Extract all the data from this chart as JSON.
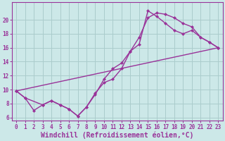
{
  "title": "",
  "xlabel": "Windchill (Refroidissement éolien,°C)",
  "ylabel": "",
  "bg_color": "#cce8e8",
  "grid_color": "#aacccc",
  "line_color": "#993399",
  "xlim": [
    -0.5,
    23.5
  ],
  "ylim": [
    5.5,
    22.5
  ],
  "xticks": [
    0,
    1,
    2,
    3,
    4,
    5,
    6,
    7,
    8,
    9,
    10,
    11,
    12,
    13,
    14,
    15,
    16,
    17,
    18,
    19,
    20,
    21,
    22,
    23
  ],
  "yticks": [
    6,
    8,
    10,
    12,
    14,
    16,
    18,
    20
  ],
  "line1_x": [
    0,
    1,
    2,
    3,
    4,
    5,
    6,
    7,
    8,
    9,
    10,
    11,
    12,
    13,
    14,
    15,
    16,
    17,
    18,
    19,
    20,
    21,
    22,
    23
  ],
  "line1_y": [
    9.8,
    8.8,
    7.0,
    7.8,
    8.4,
    7.8,
    7.2,
    6.2,
    7.5,
    9.3,
    11.5,
    13.0,
    13.8,
    15.5,
    17.5,
    20.3,
    21.0,
    20.8,
    20.3,
    19.5,
    19.0,
    17.5,
    16.8,
    16.0
  ],
  "line2_x": [
    0,
    1,
    3,
    4,
    5,
    6,
    7,
    8,
    9,
    10,
    11,
    12,
    13,
    14,
    15,
    16,
    17,
    18,
    19,
    20,
    21,
    22,
    23
  ],
  "line2_y": [
    9.8,
    8.8,
    7.8,
    8.4,
    7.8,
    7.2,
    6.2,
    7.5,
    9.5,
    11.0,
    11.5,
    13.0,
    15.5,
    16.5,
    21.3,
    20.5,
    19.5,
    18.5,
    18.0,
    18.5,
    17.5,
    16.8,
    16.0
  ],
  "line3_x": [
    0,
    23
  ],
  "line3_y": [
    9.8,
    16.0
  ],
  "marker": "D",
  "marker_size": 2.5,
  "line_width": 1.0,
  "tick_fontsize": 5.5,
  "xlabel_fontsize": 7.0
}
